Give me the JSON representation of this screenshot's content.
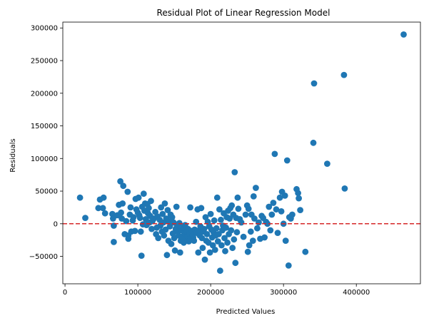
{
  "chart_data": {
    "type": "scatter",
    "title": "Residual Plot of Linear Regression Model",
    "xlabel": "Predicted Values",
    "ylabel": "Residuals",
    "xlim": [
      -3000,
      488000
    ],
    "ylim": [
      -92000,
      309000
    ],
    "xticks": [
      0,
      100000,
      200000,
      300000,
      400000
    ],
    "xtick_labels": [
      "0",
      "100000",
      "200000",
      "300000",
      "400000"
    ],
    "yticks": [
      -50000,
      0,
      50000,
      100000,
      150000,
      200000,
      250000,
      300000
    ],
    "ytick_labels": [
      "−50000",
      "0",
      "50000",
      "100000",
      "150000",
      "200000",
      "250000",
      "300000"
    ],
    "grid": false,
    "colors": {
      "points": "#1f77b4",
      "reference_line": "#d62728"
    },
    "reference_line": {
      "y": 0,
      "style": "dashed"
    },
    "series": [
      {
        "points": [
          [
            20600,
            40000
          ],
          [
            27900,
            9000
          ],
          [
            45800,
            24000
          ],
          [
            48000,
            37000
          ],
          [
            53000,
            40000
          ],
          [
            52000,
            24000
          ],
          [
            55000,
            16000
          ],
          [
            65000,
            15000
          ],
          [
            66000,
            8000
          ],
          [
            67000,
            -3000
          ],
          [
            67000,
            -28000
          ],
          [
            72000,
            13000
          ],
          [
            74000,
            29000
          ],
          [
            76000,
            65000
          ],
          [
            77000,
            17000
          ],
          [
            78000,
            8000
          ],
          [
            79000,
            31000
          ],
          [
            80000,
            58000
          ],
          [
            82000,
            -16000
          ],
          [
            84000,
            4000
          ],
          [
            86000,
            49000
          ],
          [
            87000,
            -18000
          ],
          [
            87000,
            -23000
          ],
          [
            89000,
            14000
          ],
          [
            90000,
            25000
          ],
          [
            91000,
            -12000
          ],
          [
            93000,
            5000
          ],
          [
            94000,
            10000
          ],
          [
            96000,
            -11000
          ],
          [
            97000,
            38000
          ],
          [
            98000,
            22000
          ],
          [
            100000,
            17000
          ],
          [
            101000,
            40000
          ],
          [
            102000,
            13000
          ],
          [
            103000,
            9000
          ],
          [
            104000,
            -12000
          ],
          [
            105000,
            -49000
          ],
          [
            106000,
            26000
          ],
          [
            107000,
            -1000
          ],
          [
            108000,
            46000
          ],
          [
            109000,
            20000
          ],
          [
            110000,
            31000
          ],
          [
            111000,
            7000
          ],
          [
            112000,
            -2000
          ],
          [
            113000,
            30000
          ],
          [
            114000,
            16000
          ],
          [
            115000,
            24000
          ],
          [
            116000,
            2000
          ],
          [
            117000,
            12000
          ],
          [
            118000,
            35000
          ],
          [
            119000,
            -8000
          ],
          [
            120000,
            4000
          ],
          [
            122000,
            8000
          ],
          [
            124000,
            18000
          ],
          [
            125000,
            -16000
          ],
          [
            126000,
            -6000
          ],
          [
            127000,
            11000
          ],
          [
            128000,
            -22000
          ],
          [
            130000,
            6000
          ],
          [
            131000,
            -3000
          ],
          [
            132000,
            25000
          ],
          [
            133000,
            -12000
          ],
          [
            134000,
            15000
          ],
          [
            135000,
            2000
          ],
          [
            136000,
            -18000
          ],
          [
            137000,
            31000
          ],
          [
            138000,
            -9000
          ],
          [
            139000,
            8000
          ],
          [
            140000,
            -48000
          ],
          [
            141000,
            21000
          ],
          [
            142000,
            -26000
          ],
          [
            143000,
            3000
          ],
          [
            144000,
            -4000
          ],
          [
            145000,
            14000
          ],
          [
            146000,
            -31000
          ],
          [
            147000,
            10000
          ],
          [
            148000,
            -15000
          ],
          [
            149000,
            2000
          ],
          [
            150000,
            -22000
          ],
          [
            151000,
            -41000
          ],
          [
            152000,
            -8000
          ],
          [
            153000,
            26000
          ],
          [
            154000,
            -4000
          ],
          [
            155000,
            -12000
          ],
          [
            156000,
            -18000
          ],
          [
            157000,
            1000
          ],
          [
            158000,
            -44000
          ],
          [
            159000,
            -26000
          ],
          [
            160000,
            -10000
          ],
          [
            161000,
            -20000
          ],
          [
            162000,
            -6000
          ],
          [
            163000,
            -29000
          ],
          [
            164000,
            -15000
          ],
          [
            165000,
            -2000
          ],
          [
            166000,
            -24000
          ],
          [
            167000,
            -12000
          ],
          [
            168000,
            -19000
          ],
          [
            169000,
            -8000
          ],
          [
            170000,
            -27000
          ],
          [
            171000,
            -16000
          ],
          [
            172000,
            25000
          ],
          [
            173000,
            -23000
          ],
          [
            174000,
            -11000
          ],
          [
            175000,
            -18000
          ],
          [
            176000,
            -21000
          ],
          [
            177000,
            -26000
          ],
          [
            178000,
            -9000
          ],
          [
            180000,
            3000
          ],
          [
            181000,
            -14000
          ],
          [
            182000,
            22000
          ],
          [
            183000,
            -44000
          ],
          [
            184000,
            -10000
          ],
          [
            185000,
            -18000
          ],
          [
            186000,
            -4000
          ],
          [
            187000,
            24000
          ],
          [
            188000,
            -22000
          ],
          [
            189000,
            -37000
          ],
          [
            190000,
            -12000
          ],
          [
            191000,
            -8000
          ],
          [
            192000,
            -55000
          ],
          [
            193000,
            10000
          ],
          [
            194000,
            -26000
          ],
          [
            195000,
            -16000
          ],
          [
            196000,
            3000
          ],
          [
            197000,
            -29000
          ],
          [
            198000,
            -4000
          ],
          [
            199000,
            -44000
          ],
          [
            200000,
            15000
          ],
          [
            201000,
            -9000
          ],
          [
            202000,
            -21000
          ],
          [
            203000,
            -33000
          ],
          [
            204000,
            -13000
          ],
          [
            205000,
            5000
          ],
          [
            206000,
            -40000
          ],
          [
            207000,
            -18000
          ],
          [
            208000,
            -7000
          ],
          [
            209000,
            40000
          ],
          [
            210000,
            -27000
          ],
          [
            211000,
            -16000
          ],
          [
            212000,
            22000
          ],
          [
            213000,
            -72000
          ],
          [
            214000,
            6000
          ],
          [
            215000,
            -33000
          ],
          [
            216000,
            -10000
          ],
          [
            217000,
            -3000
          ],
          [
            218000,
            16000
          ],
          [
            219000,
            -22000
          ],
          [
            220000,
            -42000
          ],
          [
            221000,
            -6000
          ],
          [
            222000,
            10000
          ],
          [
            223000,
            -29000
          ],
          [
            224000,
            20000
          ],
          [
            225000,
            -16000
          ],
          [
            226000,
            8000
          ],
          [
            227000,
            24000
          ],
          [
            228000,
            -10000
          ],
          [
            229000,
            28000
          ],
          [
            230000,
            -37000
          ],
          [
            231000,
            14000
          ],
          [
            232000,
            -24000
          ],
          [
            233000,
            79000
          ],
          [
            234000,
            -60000
          ],
          [
            235000,
            9000
          ],
          [
            236000,
            -13000
          ],
          [
            237000,
            40000
          ],
          [
            238000,
            23000
          ],
          [
            240000,
            7000
          ],
          [
            242000,
            2000
          ],
          [
            245000,
            -20000
          ],
          [
            248000,
            14000
          ],
          [
            250000,
            28000
          ],
          [
            251000,
            -43000
          ],
          [
            252000,
            23000
          ],
          [
            253000,
            -33000
          ],
          [
            255000,
            -12000
          ],
          [
            256000,
            14000
          ],
          [
            258000,
            -26000
          ],
          [
            259000,
            42000
          ],
          [
            260000,
            8000
          ],
          [
            262000,
            55000
          ],
          [
            264000,
            -7000
          ],
          [
            266000,
            2000
          ],
          [
            268000,
            -23000
          ],
          [
            270000,
            12000
          ],
          [
            272000,
            9000
          ],
          [
            274000,
            -21000
          ],
          [
            276000,
            3000
          ],
          [
            278000,
            0
          ],
          [
            280000,
            26000
          ],
          [
            282000,
            -10000
          ],
          [
            284000,
            14000
          ],
          [
            286000,
            32000
          ],
          [
            288000,
            107000
          ],
          [
            290000,
            22000
          ],
          [
            292000,
            -14000
          ],
          [
            295000,
            40000
          ],
          [
            297000,
            19000
          ],
          [
            298000,
            49000
          ],
          [
            300000,
            0
          ],
          [
            302000,
            43000
          ],
          [
            303000,
            -26000
          ],
          [
            305000,
            97000
          ],
          [
            307000,
            -64000
          ],
          [
            308000,
            10000
          ],
          [
            310000,
            8000
          ],
          [
            312000,
            14000
          ],
          [
            318000,
            53000
          ],
          [
            320000,
            47000
          ],
          [
            321000,
            39000
          ],
          [
            323000,
            21000
          ],
          [
            330000,
            -43000
          ],
          [
            341000,
            124000
          ],
          [
            342000,
            215000
          ],
          [
            360000,
            92000
          ],
          [
            383000,
            228000
          ],
          [
            384000,
            54000
          ],
          [
            465000,
            290000
          ]
        ]
      }
    ]
  }
}
